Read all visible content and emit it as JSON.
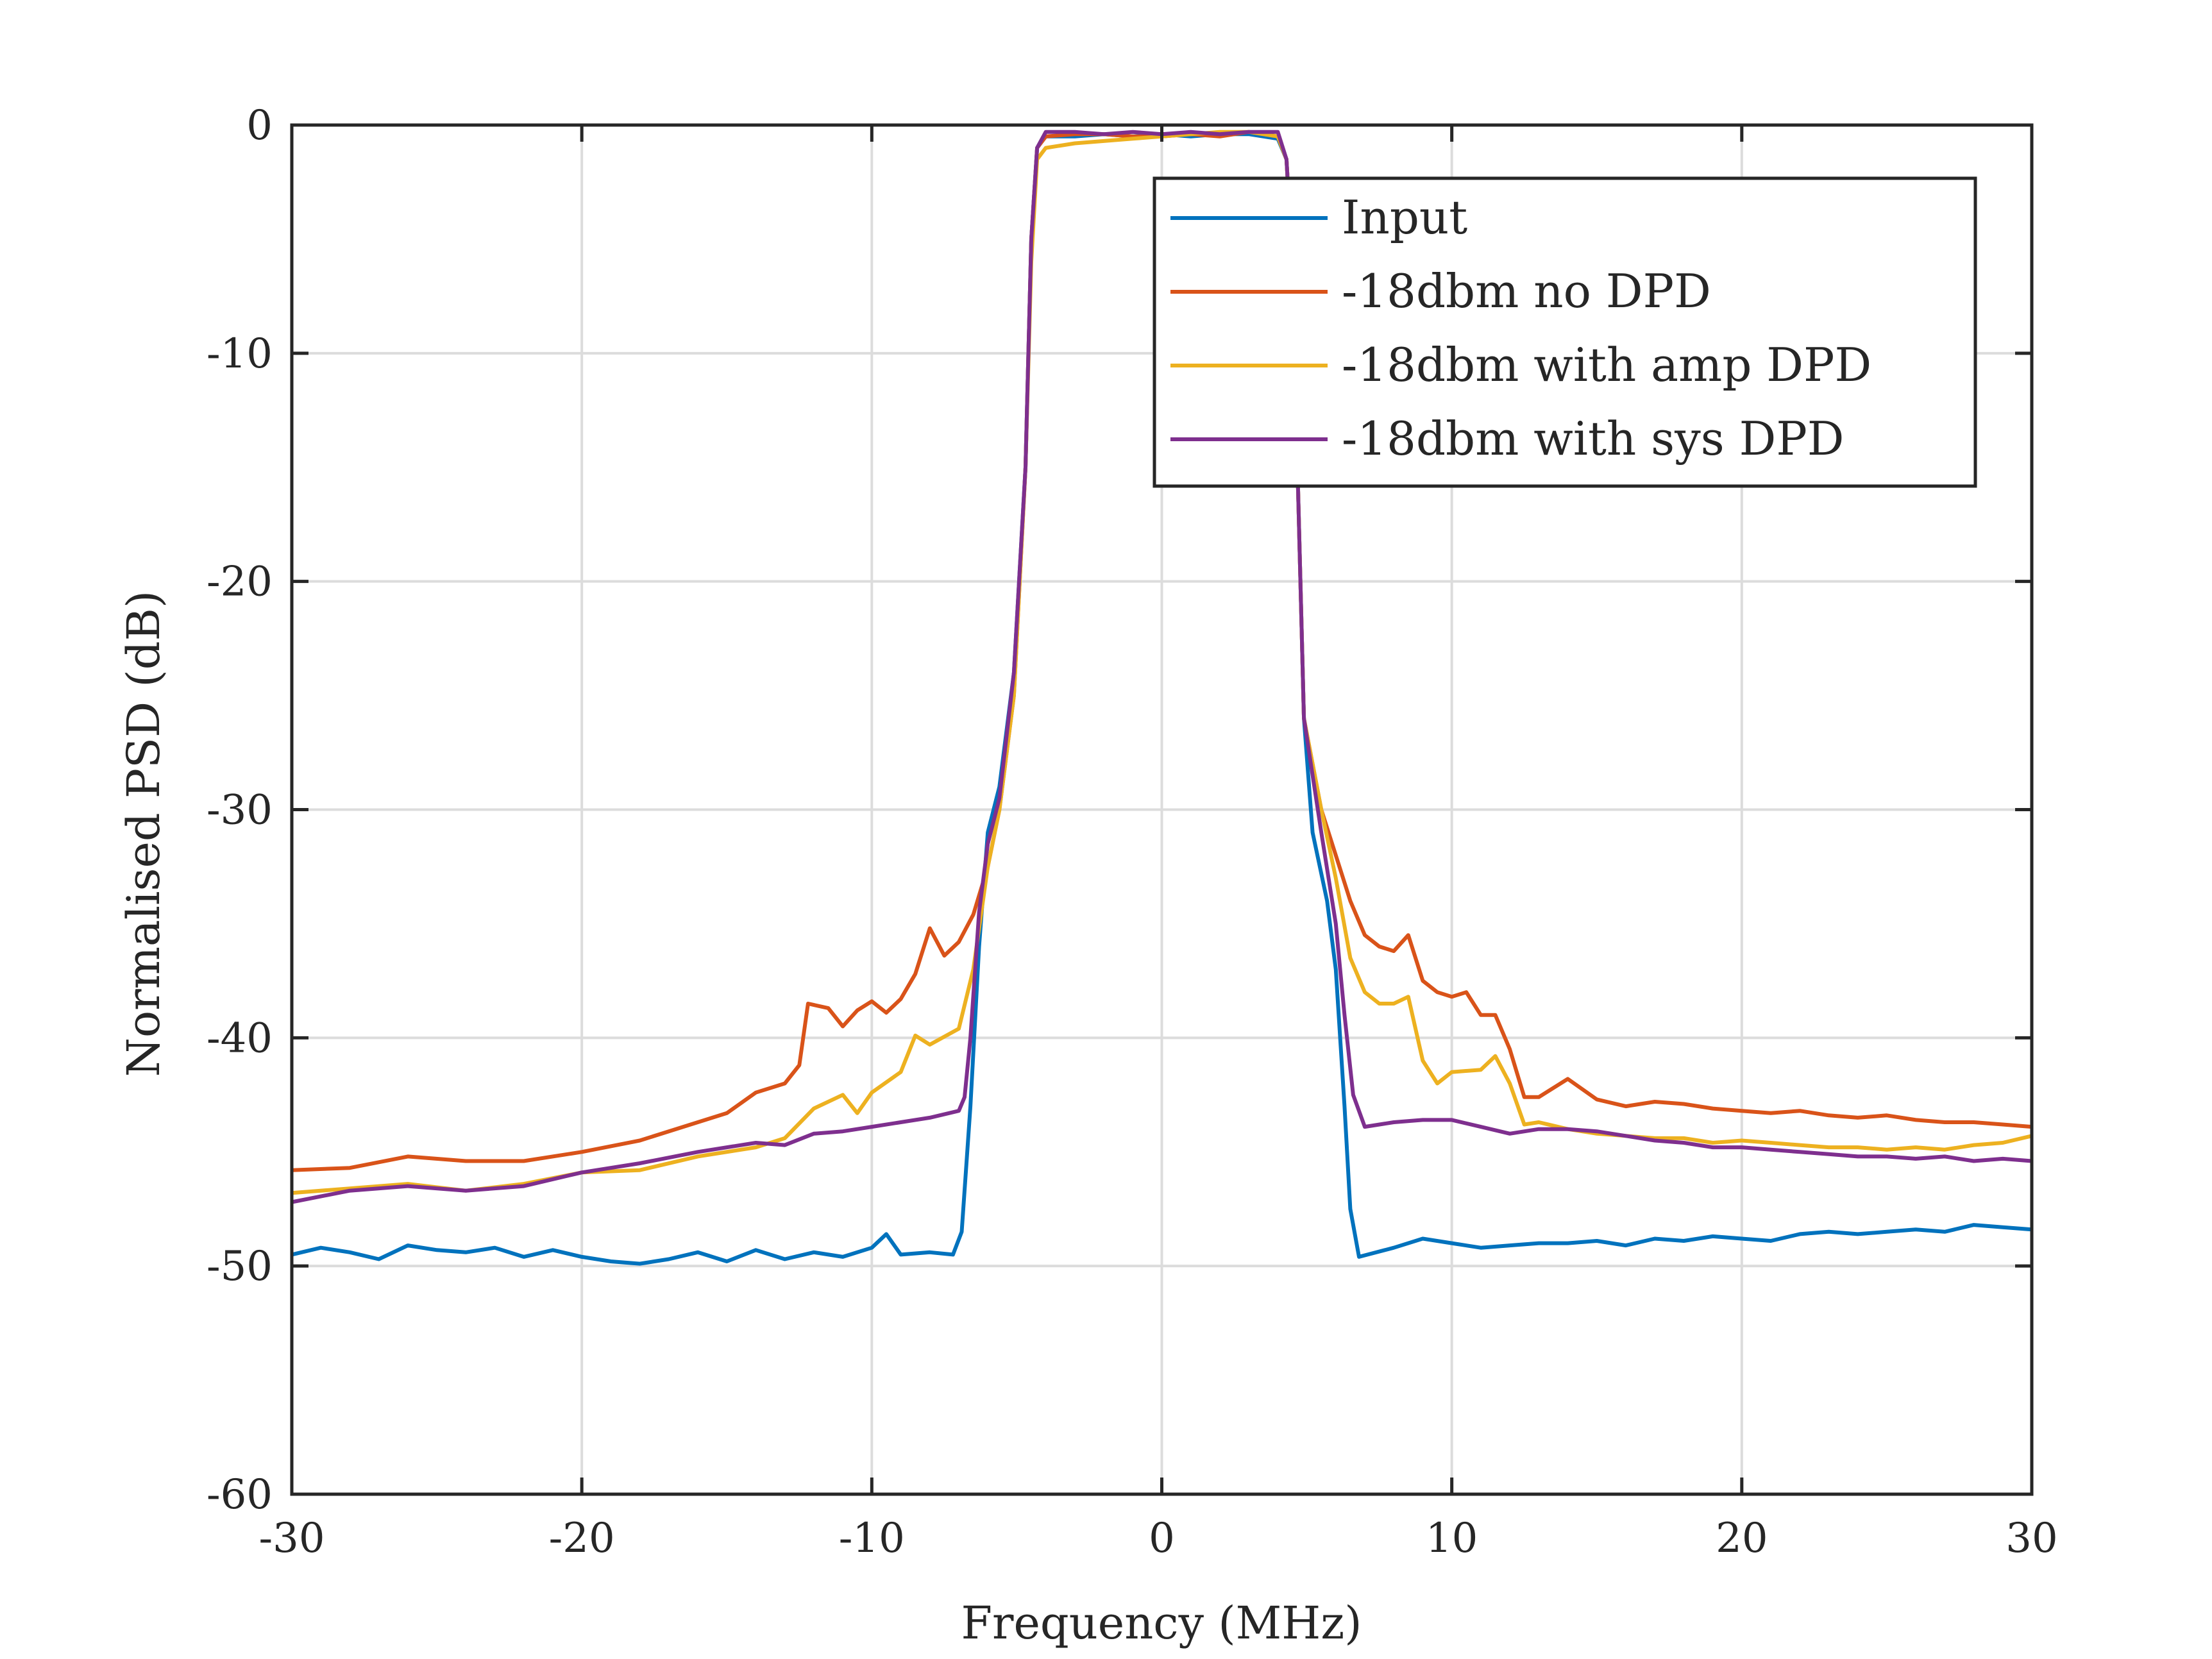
{
  "chart_data": {
    "type": "line",
    "xlabel": "Frequency (MHz)",
    "ylabel": "Normalised PSD (dB)",
    "xlim": [
      -30,
      30
    ],
    "ylim": [
      -60,
      0
    ],
    "xticks": [
      -30,
      -20,
      -10,
      0,
      10,
      20,
      30
    ],
    "yticks": [
      0,
      -10,
      -20,
      -30,
      -40,
      -50,
      -60
    ],
    "xtick_labels": [
      "-30",
      "-20",
      "-10",
      "0",
      "10",
      "20",
      "30"
    ],
    "ytick_labels": [
      "0",
      "-10",
      "-20",
      "-30",
      "-40",
      "-50",
      "-60"
    ],
    "grid": true,
    "legend_position": "top-right",
    "series": [
      {
        "name": "Input",
        "color": "#0072BD",
        "points": [
          [
            -30,
            -49.5
          ],
          [
            -29,
            -49.2
          ],
          [
            -28,
            -49.4
          ],
          [
            -27,
            -49.7
          ],
          [
            -26,
            -49.1
          ],
          [
            -25,
            -49.3
          ],
          [
            -24,
            -49.4
          ],
          [
            -23,
            -49.2
          ],
          [
            -22,
            -49.6
          ],
          [
            -21,
            -49.3
          ],
          [
            -20,
            -49.6
          ],
          [
            -19,
            -49.8
          ],
          [
            -18,
            -49.9
          ],
          [
            -17,
            -49.7
          ],
          [
            -16,
            -49.4
          ],
          [
            -15,
            -49.8
          ],
          [
            -14,
            -49.3
          ],
          [
            -13,
            -49.7
          ],
          [
            -12,
            -49.4
          ],
          [
            -11,
            -49.6
          ],
          [
            -10,
            -49.2
          ],
          [
            -9.5,
            -48.6
          ],
          [
            -9,
            -49.5
          ],
          [
            -8,
            -49.4
          ],
          [
            -7.2,
            -49.5
          ],
          [
            -6.9,
            -48.5
          ],
          [
            -6.6,
            -43
          ],
          [
            -6.3,
            -36
          ],
          [
            -6,
            -31
          ],
          [
            -5.6,
            -29
          ],
          [
            -5.1,
            -24
          ],
          [
            -4.7,
            -15
          ],
          [
            -4.5,
            -5
          ],
          [
            -4.3,
            -1
          ],
          [
            -4,
            -0.5
          ],
          [
            -3,
            -0.5
          ],
          [
            -2,
            -0.4
          ],
          [
            -1,
            -0.5
          ],
          [
            0,
            -0.4
          ],
          [
            1,
            -0.5
          ],
          [
            2,
            -0.4
          ],
          [
            3,
            -0.4
          ],
          [
            4,
            -0.6
          ],
          [
            4.3,
            -1.5
          ],
          [
            4.5,
            -6
          ],
          [
            4.7,
            -16
          ],
          [
            4.9,
            -26
          ],
          [
            5.2,
            -31
          ],
          [
            5.7,
            -34
          ],
          [
            6,
            -37
          ],
          [
            6.3,
            -43
          ],
          [
            6.5,
            -47.5
          ],
          [
            6.8,
            -49.6
          ],
          [
            8,
            -49.2
          ],
          [
            9,
            -48.8
          ],
          [
            10,
            -49
          ],
          [
            11,
            -49.2
          ],
          [
            12,
            -49.1
          ],
          [
            13,
            -49
          ],
          [
            14,
            -49
          ],
          [
            15,
            -48.9
          ],
          [
            16,
            -49.1
          ],
          [
            17,
            -48.8
          ],
          [
            18,
            -48.9
          ],
          [
            19,
            -48.7
          ],
          [
            20,
            -48.8
          ],
          [
            21,
            -48.9
          ],
          [
            22,
            -48.6
          ],
          [
            23,
            -48.5
          ],
          [
            24,
            -48.6
          ],
          [
            25,
            -48.5
          ],
          [
            26,
            -48.4
          ],
          [
            27,
            -48.5
          ],
          [
            28,
            -48.2
          ],
          [
            29,
            -48.3
          ],
          [
            30,
            -48.4
          ]
        ]
      },
      {
        "name": "-18dbm no DPD",
        "color": "#D95319",
        "points": [
          [
            -30,
            -45.8
          ],
          [
            -28,
            -45.7
          ],
          [
            -26,
            -45.2
          ],
          [
            -24,
            -45.4
          ],
          [
            -22,
            -45.4
          ],
          [
            -20,
            -45.0
          ],
          [
            -18,
            -44.5
          ],
          [
            -16,
            -43.7
          ],
          [
            -15,
            -43.3
          ],
          [
            -14,
            -42.4
          ],
          [
            -13,
            -42.0
          ],
          [
            -12.5,
            -41.2
          ],
          [
            -12.2,
            -38.5
          ],
          [
            -11.5,
            -38.7
          ],
          [
            -11,
            -39.5
          ],
          [
            -10.5,
            -38.8
          ],
          [
            -10,
            -38.4
          ],
          [
            -9.5,
            -38.9
          ],
          [
            -9,
            -38.3
          ],
          [
            -8.5,
            -37.2
          ],
          [
            -8,
            -35.2
          ],
          [
            -7.5,
            -36.4
          ],
          [
            -7,
            -35.8
          ],
          [
            -6.5,
            -34.6
          ],
          [
            -6,
            -32.5
          ],
          [
            -5.6,
            -30
          ],
          [
            -5.1,
            -25
          ],
          [
            -4.7,
            -15
          ],
          [
            -4.5,
            -5
          ],
          [
            -4.3,
            -1
          ],
          [
            -4,
            -0.5
          ],
          [
            -3,
            -0.4
          ],
          [
            -2,
            -0.4
          ],
          [
            -1,
            -0.5
          ],
          [
            0,
            -0.5
          ],
          [
            1,
            -0.4
          ],
          [
            2,
            -0.5
          ],
          [
            3,
            -0.3
          ],
          [
            4,
            -0.5
          ],
          [
            4.3,
            -1.5
          ],
          [
            4.5,
            -6
          ],
          [
            4.7,
            -16
          ],
          [
            4.9,
            -26
          ],
          [
            5.5,
            -30
          ],
          [
            6,
            -32
          ],
          [
            6.5,
            -34
          ],
          [
            7,
            -35.5
          ],
          [
            7.5,
            -36
          ],
          [
            8,
            -36.2
          ],
          [
            8.5,
            -35.5
          ],
          [
            9,
            -37.5
          ],
          [
            9.5,
            -38
          ],
          [
            10,
            -38.2
          ],
          [
            10.5,
            -38
          ],
          [
            11,
            -39
          ],
          [
            11.5,
            -39
          ],
          [
            12,
            -40.5
          ],
          [
            12.5,
            -42.6
          ],
          [
            13,
            -42.6
          ],
          [
            14,
            -41.8
          ],
          [
            15,
            -42.7
          ],
          [
            16,
            -43.0
          ],
          [
            17,
            -42.8
          ],
          [
            18,
            -42.9
          ],
          [
            19,
            -43.1
          ],
          [
            20,
            -43.2
          ],
          [
            21,
            -43.3
          ],
          [
            22,
            -43.2
          ],
          [
            23,
            -43.4
          ],
          [
            24,
            -43.5
          ],
          [
            25,
            -43.4
          ],
          [
            26,
            -43.6
          ],
          [
            27,
            -43.7
          ],
          [
            28,
            -43.7
          ],
          [
            29,
            -43.8
          ],
          [
            30,
            -43.9
          ]
        ]
      },
      {
        "name": "-18dbm with amp DPD",
        "color": "#EDB120",
        "points": [
          [
            -30,
            -46.8
          ],
          [
            -28,
            -46.6
          ],
          [
            -26,
            -46.4
          ],
          [
            -24,
            -46.7
          ],
          [
            -22,
            -46.4
          ],
          [
            -20,
            -45.9
          ],
          [
            -18,
            -45.8
          ],
          [
            -16,
            -45.2
          ],
          [
            -14,
            -44.8
          ],
          [
            -13,
            -44.4
          ],
          [
            -12,
            -43.1
          ],
          [
            -11,
            -42.5
          ],
          [
            -10.5,
            -43.3
          ],
          [
            -10,
            -42.4
          ],
          [
            -9,
            -41.5
          ],
          [
            -8.5,
            -39.9
          ],
          [
            -8,
            -40.3
          ],
          [
            -7,
            -39.6
          ],
          [
            -6.5,
            -37
          ],
          [
            -6,
            -32.5
          ],
          [
            -5.6,
            -30
          ],
          [
            -5.1,
            -25
          ],
          [
            -4.7,
            -15
          ],
          [
            -4.5,
            -6
          ],
          [
            -4.3,
            -1.5
          ],
          [
            -4,
            -1
          ],
          [
            -3,
            -0.8
          ],
          [
            -2,
            -0.7
          ],
          [
            -1,
            -0.6
          ],
          [
            0,
            -0.5
          ],
          [
            1,
            -0.4
          ],
          [
            2,
            -0.3
          ],
          [
            3,
            -0.3
          ],
          [
            4,
            -0.5
          ],
          [
            4.3,
            -1.5
          ],
          [
            4.5,
            -6
          ],
          [
            4.7,
            -16
          ],
          [
            4.9,
            -26
          ],
          [
            5.5,
            -30
          ],
          [
            6,
            -33
          ],
          [
            6.5,
            -36.5
          ],
          [
            7,
            -38
          ],
          [
            7.5,
            -38.5
          ],
          [
            8,
            -38.5
          ],
          [
            8.5,
            -38.2
          ],
          [
            9,
            -41
          ],
          [
            9.5,
            -42
          ],
          [
            10,
            -41.5
          ],
          [
            11,
            -41.4
          ],
          [
            11.5,
            -40.8
          ],
          [
            12,
            -42
          ],
          [
            12.5,
            -43.8
          ],
          [
            13,
            -43.7
          ],
          [
            14,
            -44.0
          ],
          [
            15,
            -44.2
          ],
          [
            16,
            -44.3
          ],
          [
            17,
            -44.4
          ],
          [
            18,
            -44.4
          ],
          [
            19,
            -44.6
          ],
          [
            20,
            -44.5
          ],
          [
            21,
            -44.6
          ],
          [
            22,
            -44.7
          ],
          [
            23,
            -44.8
          ],
          [
            24,
            -44.8
          ],
          [
            25,
            -44.9
          ],
          [
            26,
            -44.8
          ],
          [
            27,
            -44.9
          ],
          [
            28,
            -44.7
          ],
          [
            29,
            -44.6
          ],
          [
            30,
            -44.3
          ]
        ]
      },
      {
        "name": "-18dbm with sys DPD",
        "color": "#7E2F8E",
        "points": [
          [
            -30,
            -47.2
          ],
          [
            -28,
            -46.7
          ],
          [
            -26,
            -46.5
          ],
          [
            -24,
            -46.7
          ],
          [
            -22,
            -46.5
          ],
          [
            -20,
            -45.9
          ],
          [
            -18,
            -45.5
          ],
          [
            -16,
            -45.0
          ],
          [
            -14,
            -44.6
          ],
          [
            -13,
            -44.7
          ],
          [
            -12,
            -44.2
          ],
          [
            -11,
            -44.1
          ],
          [
            -10,
            -43.9
          ],
          [
            -9,
            -43.7
          ],
          [
            -8,
            -43.5
          ],
          [
            -7,
            -43.2
          ],
          [
            -6.8,
            -42.6
          ],
          [
            -6.6,
            -40
          ],
          [
            -6.3,
            -34.5
          ],
          [
            -6,
            -31.5
          ],
          [
            -5.6,
            -29.5
          ],
          [
            -5.1,
            -24
          ],
          [
            -4.7,
            -15
          ],
          [
            -4.5,
            -5
          ],
          [
            -4.3,
            -1
          ],
          [
            -4,
            -0.3
          ],
          [
            -3,
            -0.3
          ],
          [
            -2,
            -0.4
          ],
          [
            -1,
            -0.3
          ],
          [
            0,
            -0.4
          ],
          [
            1,
            -0.3
          ],
          [
            2,
            -0.4
          ],
          [
            3,
            -0.3
          ],
          [
            4,
            -0.3
          ],
          [
            4.3,
            -1.5
          ],
          [
            4.5,
            -6
          ],
          [
            4.7,
            -16
          ],
          [
            4.9,
            -26
          ],
          [
            5.5,
            -31
          ],
          [
            6,
            -35
          ],
          [
            6.3,
            -39
          ],
          [
            6.6,
            -42.5
          ],
          [
            7,
            -43.9
          ],
          [
            8,
            -43.7
          ],
          [
            9,
            -43.6
          ],
          [
            10,
            -43.6
          ],
          [
            11,
            -43.9
          ],
          [
            12,
            -44.2
          ],
          [
            13,
            -44.0
          ],
          [
            14,
            -44.0
          ],
          [
            15,
            -44.1
          ],
          [
            16,
            -44.3
          ],
          [
            17,
            -44.5
          ],
          [
            18,
            -44.6
          ],
          [
            19,
            -44.8
          ],
          [
            20,
            -44.8
          ],
          [
            21,
            -44.9
          ],
          [
            22,
            -45.0
          ],
          [
            23,
            -45.1
          ],
          [
            24,
            -45.2
          ],
          [
            25,
            -45.2
          ],
          [
            26,
            -45.3
          ],
          [
            27,
            -45.2
          ],
          [
            28,
            -45.4
          ],
          [
            29,
            -45.3
          ],
          [
            30,
            -45.4
          ]
        ]
      }
    ]
  }
}
